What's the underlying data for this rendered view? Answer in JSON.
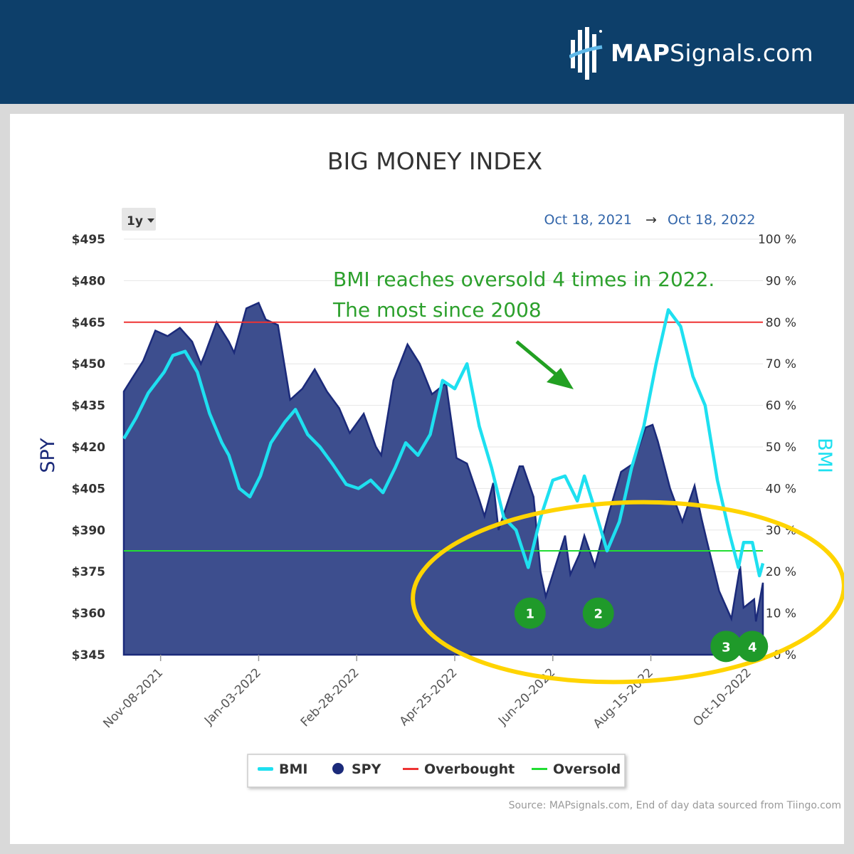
{
  "brand": {
    "name_bold": "MAP",
    "name_rest": "Signals.com"
  },
  "chart_data": {
    "type": "area",
    "title": "BIG MONEY INDEX",
    "range_selector": "1y",
    "date_from": "Oct 18, 2021",
    "arrow": "→",
    "date_to": "Oct 18, 2022",
    "y_left": {
      "label": "SPY",
      "ticks": [
        "$345",
        "$360",
        "$375",
        "$390",
        "$405",
        "$420",
        "$435",
        "$450",
        "$465",
        "$480",
        "$495"
      ],
      "range": [
        345,
        495
      ]
    },
    "y_right": {
      "label": "BMI",
      "ticks": [
        "0 %",
        "10 %",
        "20 %",
        "30 %",
        "40 %",
        "50 %",
        "60 %",
        "70 %",
        "80 %",
        "90 %",
        "100 %"
      ],
      "range": [
        0,
        100
      ]
    },
    "x_ticks": [
      "Nov-08-2021",
      "Jan-03-2022",
      "Feb-28-2022",
      "Apr-25-2022",
      "Jun-20-2022",
      "Aug-15-2022",
      "Oct-10-2022"
    ],
    "x_range": [
      "2021-10-18",
      "2022-10-18"
    ],
    "overbought": 80,
    "oversold": 25,
    "series": [
      {
        "name": "SPY",
        "color": "#1b2a7a",
        "fill": "#3d4e8e",
        "points": [
          [
            "2021-10-18",
            440
          ],
          [
            "2021-10-22",
            444
          ],
          [
            "2021-10-29",
            451
          ],
          [
            "2021-11-05",
            462
          ],
          [
            "2021-11-12",
            460
          ],
          [
            "2021-11-19",
            463
          ],
          [
            "2021-11-26",
            458
          ],
          [
            "2021-12-01",
            450
          ],
          [
            "2021-12-03",
            453
          ],
          [
            "2021-12-10",
            465
          ],
          [
            "2021-12-17",
            458
          ],
          [
            "2021-12-20",
            454
          ],
          [
            "2021-12-27",
            470
          ],
          [
            "2022-01-03",
            472
          ],
          [
            "2022-01-07",
            466
          ],
          [
            "2022-01-14",
            464
          ],
          [
            "2022-01-21",
            437
          ],
          [
            "2022-01-28",
            441
          ],
          [
            "2022-02-04",
            448
          ],
          [
            "2022-02-11",
            440
          ],
          [
            "2022-02-18",
            434
          ],
          [
            "2022-02-24",
            425
          ],
          [
            "2022-03-04",
            432
          ],
          [
            "2022-03-11",
            420
          ],
          [
            "2022-03-14",
            417
          ],
          [
            "2022-03-21",
            444
          ],
          [
            "2022-03-29",
            457
          ],
          [
            "2022-04-05",
            450
          ],
          [
            "2022-04-12",
            439
          ],
          [
            "2022-04-20",
            443
          ],
          [
            "2022-04-26",
            416
          ],
          [
            "2022-05-02",
            414
          ],
          [
            "2022-05-09",
            401
          ],
          [
            "2022-05-12",
            395
          ],
          [
            "2022-05-17",
            407
          ],
          [
            "2022-05-20",
            390
          ],
          [
            "2022-06-01",
            413
          ],
          [
            "2022-06-03",
            413
          ],
          [
            "2022-06-09",
            402
          ],
          [
            "2022-06-13",
            375
          ],
          [
            "2022-06-16",
            366
          ],
          [
            "2022-06-22",
            378
          ],
          [
            "2022-06-27",
            388
          ],
          [
            "2022-06-30",
            374
          ],
          [
            "2022-07-05",
            381
          ],
          [
            "2022-07-08",
            388
          ],
          [
            "2022-07-14",
            377
          ],
          [
            "2022-07-22",
            396
          ],
          [
            "2022-07-29",
            411
          ],
          [
            "2022-08-05",
            414
          ],
          [
            "2022-08-12",
            427
          ],
          [
            "2022-08-16",
            428
          ],
          [
            "2022-08-19",
            422
          ],
          [
            "2022-08-26",
            405
          ],
          [
            "2022-09-02",
            393
          ],
          [
            "2022-09-09",
            406
          ],
          [
            "2022-09-13",
            394
          ],
          [
            "2022-09-16",
            386
          ],
          [
            "2022-09-23",
            368
          ],
          [
            "2022-09-30",
            358
          ],
          [
            "2022-10-05",
            377
          ],
          [
            "2022-10-07",
            362
          ],
          [
            "2022-10-13",
            365
          ],
          [
            "2022-10-14",
            357
          ],
          [
            "2022-10-18",
            371
          ]
        ]
      },
      {
        "name": "BMI",
        "color": "#1ee0f0",
        "points": [
          [
            "2021-10-18",
            52
          ],
          [
            "2021-10-25",
            57
          ],
          [
            "2021-11-01",
            63
          ],
          [
            "2021-11-10",
            68
          ],
          [
            "2021-11-15",
            72
          ],
          [
            "2021-11-22",
            73
          ],
          [
            "2021-11-29",
            68
          ],
          [
            "2021-12-06",
            58
          ],
          [
            "2021-12-13",
            51
          ],
          [
            "2021-12-17",
            48
          ],
          [
            "2021-12-23",
            40
          ],
          [
            "2021-12-29",
            38
          ],
          [
            "2022-01-04",
            43
          ],
          [
            "2022-01-10",
            51
          ],
          [
            "2022-01-18",
            56
          ],
          [
            "2022-01-24",
            59
          ],
          [
            "2022-01-31",
            53
          ],
          [
            "2022-02-07",
            50
          ],
          [
            "2022-02-14",
            46
          ],
          [
            "2022-02-22",
            41
          ],
          [
            "2022-03-01",
            40
          ],
          [
            "2022-03-08",
            42
          ],
          [
            "2022-03-15",
            39
          ],
          [
            "2022-03-22",
            45
          ],
          [
            "2022-03-28",
            51
          ],
          [
            "2022-04-04",
            48
          ],
          [
            "2022-04-11",
            53
          ],
          [
            "2022-04-18",
            66
          ],
          [
            "2022-04-25",
            64
          ],
          [
            "2022-05-02",
            70
          ],
          [
            "2022-05-09",
            55
          ],
          [
            "2022-05-16",
            45
          ],
          [
            "2022-05-23",
            33
          ],
          [
            "2022-05-30",
            30
          ],
          [
            "2022-06-06",
            21
          ],
          [
            "2022-06-13",
            33
          ],
          [
            "2022-06-20",
            42
          ],
          [
            "2022-06-27",
            43
          ],
          [
            "2022-07-04",
            37
          ],
          [
            "2022-07-08",
            43
          ],
          [
            "2022-07-14",
            35
          ],
          [
            "2022-07-21",
            25
          ],
          [
            "2022-07-28",
            32
          ],
          [
            "2022-08-04",
            45
          ],
          [
            "2022-08-11",
            55
          ],
          [
            "2022-08-18",
            70
          ],
          [
            "2022-08-25",
            83
          ],
          [
            "2022-09-01",
            79
          ],
          [
            "2022-09-08",
            67
          ],
          [
            "2022-09-15",
            60
          ],
          [
            "2022-09-22",
            42
          ],
          [
            "2022-09-29",
            29
          ],
          [
            "2022-10-04",
            21
          ],
          [
            "2022-10-07",
            27
          ],
          [
            "2022-10-12",
            27
          ],
          [
            "2022-10-16",
            19
          ],
          [
            "2022-10-18",
            22
          ]
        ]
      }
    ],
    "annotation": {
      "line1": "BMI reaches oversold 4 times in 2022.",
      "line2": "The most since 2008"
    },
    "markers": [
      {
        "label": "1",
        "date": "2022-06-07",
        "value": 10
      },
      {
        "label": "2",
        "date": "2022-07-16",
        "value": 10
      },
      {
        "label": "3",
        "date": "2022-09-27",
        "value": 2
      },
      {
        "label": "4",
        "date": "2022-10-12",
        "value": 2
      }
    ],
    "legend": [
      "BMI",
      "SPY",
      "Overbought",
      "Oversold"
    ],
    "legend_colors": {
      "BMI": "#1ee0f0",
      "SPY": "#1b2a7a",
      "Overbought": "#ee3333",
      "Oversold": "#22dd33"
    },
    "source": "Source: MAPsignals.com, End of day data sourced from Tiingo.com"
  }
}
